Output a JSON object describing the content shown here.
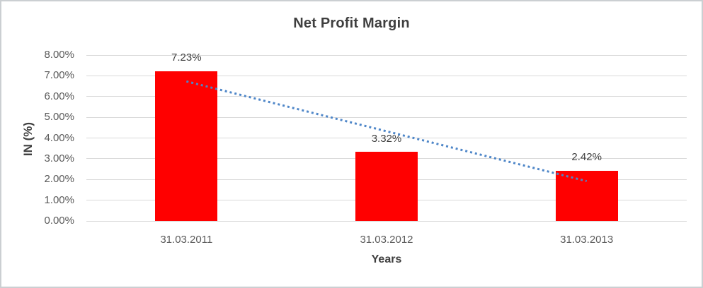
{
  "chart_data": {
    "type": "bar",
    "title": "Net Profit Margin",
    "xlabel": "Years",
    "ylabel": "IN (%)",
    "categories": [
      "31.03.2011",
      "31.03.2012",
      "31.03.2013"
    ],
    "series": [
      {
        "name": "Net Profit Margin",
        "values": [
          7.23,
          3.32,
          2.42
        ],
        "data_labels": [
          "7.23%",
          "3.32%",
          "2.42%"
        ],
        "color": "#ff0000"
      }
    ],
    "y_ticks": [
      {
        "label": "8.00%",
        "value": 8
      },
      {
        "label": "7.00%",
        "value": 7
      },
      {
        "label": "6.00%",
        "value": 6
      },
      {
        "label": "5.00%",
        "value": 5
      },
      {
        "label": "4.00%",
        "value": 4
      },
      {
        "label": "3.00%",
        "value": 3
      },
      {
        "label": "2.00%",
        "value": 2
      },
      {
        "label": "1.00%",
        "value": 1
      },
      {
        "label": "0.00%",
        "value": 0
      }
    ],
    "ylim": [
      0,
      8
    ],
    "grid": true,
    "legend": "none",
    "trendline": {
      "type": "linear",
      "style": "dotted",
      "color": "#4e86c8",
      "start_value": 6.73,
      "end_value": 1.92
    }
  },
  "colors": {
    "background": "#ffffff",
    "frame_border": "#cbcfd2",
    "gridline": "#d9d9d9",
    "bar": "#ff0000",
    "trendline": "#4e86c8",
    "title_text": "#3f3f3f",
    "tick_text": "#595959"
  }
}
